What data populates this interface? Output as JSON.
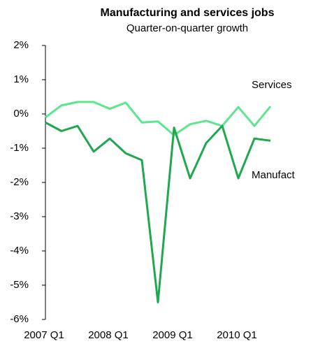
{
  "chart_data": {
    "type": "line",
    "title": "Manufacturing and services jobs",
    "subtitle": "Quarter-on-quarter growth",
    "categories": [
      "2007 Q1",
      null,
      null,
      null,
      "2008 Q1",
      null,
      null,
      null,
      "2009 Q1",
      null,
      null,
      null,
      "2010 Q1",
      null,
      null
    ],
    "series": [
      {
        "name": "Services",
        "color": "#5ce68e",
        "values": [
          -0.1,
          0.25,
          0.35,
          0.35,
          0.15,
          0.33,
          -0.25,
          -0.22,
          -0.62,
          -0.3,
          -0.2,
          -0.35,
          0.2,
          -0.35,
          0.22
        ]
      },
      {
        "name": "Manufact",
        "color": "#1fa84f",
        "values": [
          -0.25,
          -0.5,
          -0.35,
          -1.1,
          -0.72,
          -1.15,
          -1.35,
          -5.5,
          -0.4,
          -1.88,
          -0.85,
          -0.35,
          -1.88,
          -0.72,
          -0.78
        ]
      }
    ],
    "ylim": [
      -6,
      2
    ],
    "yticks": [
      {
        "value": -6,
        "label": "-6%"
      },
      {
        "value": -5,
        "label": "-5%"
      },
      {
        "value": -4,
        "label": "-4%"
      },
      {
        "value": -3,
        "label": "-3%"
      },
      {
        "value": -2,
        "label": "-2%"
      },
      {
        "value": -1,
        "label": "-1%"
      },
      {
        "value": 0,
        "label": "0%"
      },
      {
        "value": 1,
        "label": "1%"
      },
      {
        "value": 2,
        "label": "2%"
      }
    ]
  }
}
